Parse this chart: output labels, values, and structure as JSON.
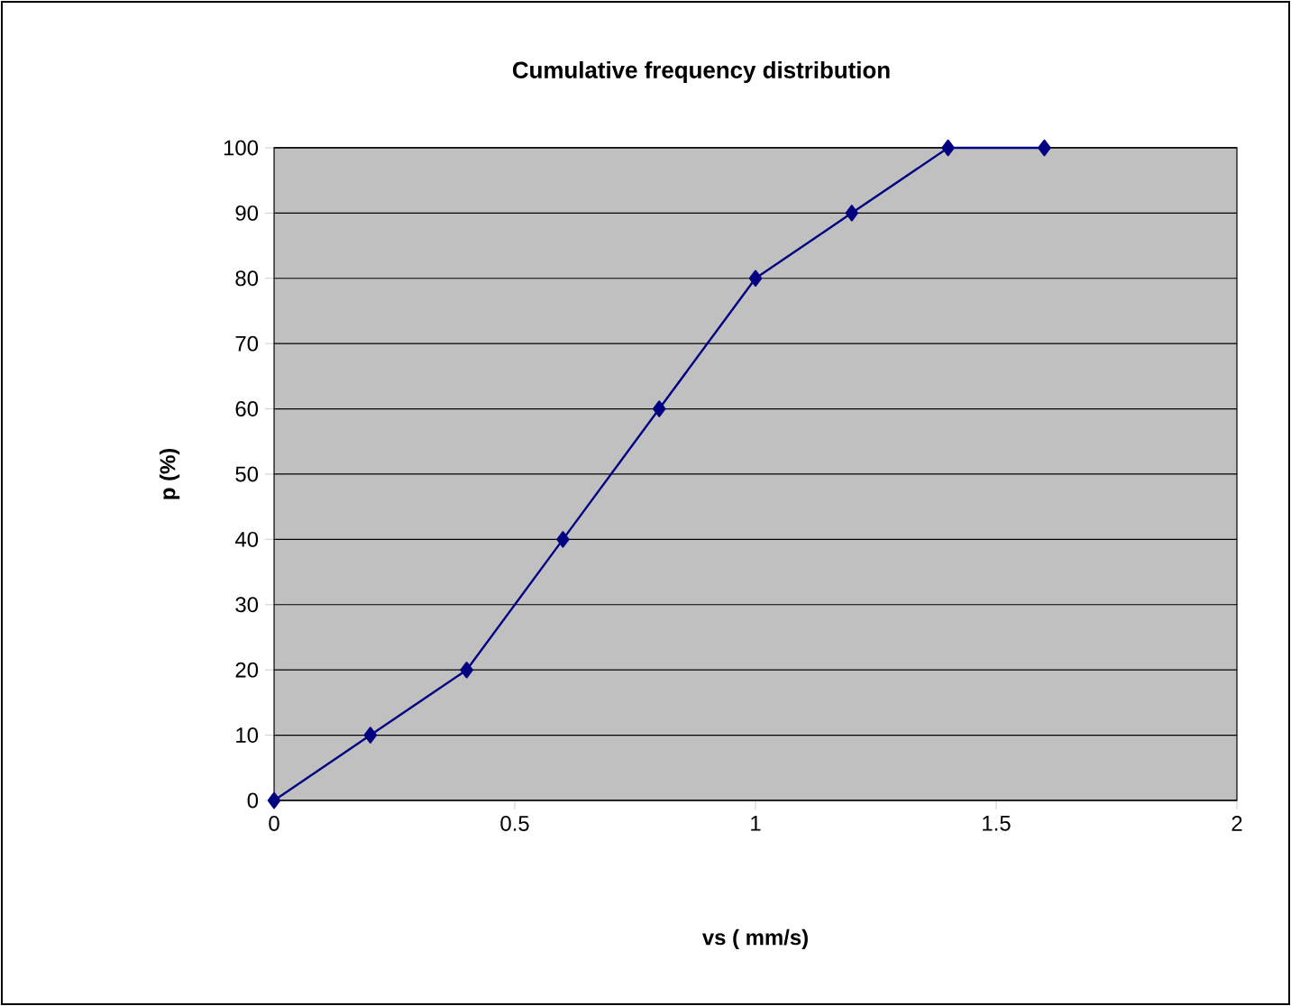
{
  "chart_data": {
    "type": "line",
    "title": "Cumulative frequency distribution",
    "xlabel": "vs ( mm/s)",
    "ylabel": "p (%)",
    "x": [
      0,
      0.2,
      0.4,
      0.6,
      0.8,
      1.0,
      1.2,
      1.4,
      1.6
    ],
    "series": [
      {
        "color": "#000080",
        "values": [
          0,
          10,
          20,
          40,
          60,
          80,
          90,
          100,
          100
        ]
      }
    ],
    "xlim": [
      0,
      2
    ],
    "xticks": [
      0,
      0.5,
      1,
      1.5,
      2
    ],
    "ylim": [
      0,
      100
    ],
    "yticks": [
      0,
      10,
      20,
      30,
      40,
      50,
      60,
      70,
      80,
      90,
      100
    ],
    "grid": "y",
    "marker": "diamond",
    "line_style": "solid"
  }
}
